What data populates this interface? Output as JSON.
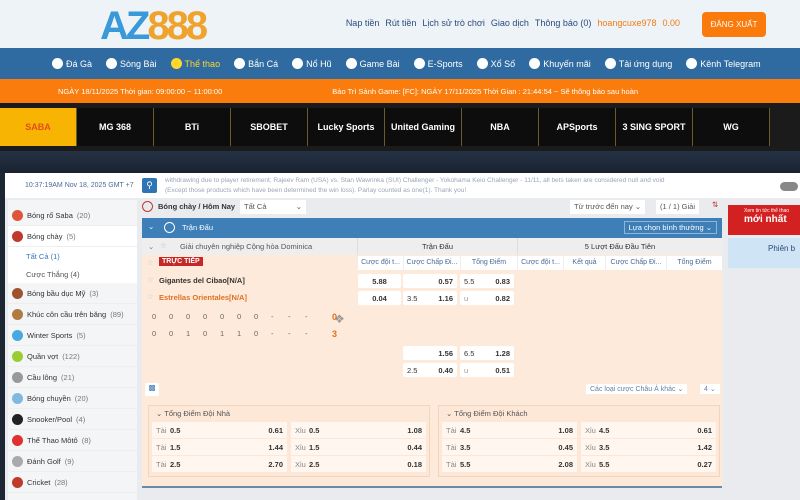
{
  "header": {
    "logo": "AZ888",
    "links": [
      "Nap tiền",
      "Rút tiền",
      "Lịch sử trò chơi",
      "Giao dịch",
      "Thông báo (0)"
    ],
    "username": "hoangcuxe978",
    "balance": "0.00",
    "logout": "ĐĂNG XUẤT"
  },
  "nav": [
    {
      "label": "Đá Gà",
      "icon": "rooster-icon"
    },
    {
      "label": "Sòng Bài",
      "icon": "casino-chip-icon"
    },
    {
      "label": "Thể thao",
      "icon": "soccer-ball-icon",
      "active": true
    },
    {
      "label": "Bắn Cá",
      "icon": "fish-icon"
    },
    {
      "label": "Nổ Hũ",
      "icon": "slot-777-icon"
    },
    {
      "label": "Game Bài",
      "icon": "cards-icon"
    },
    {
      "label": "E-Sports",
      "icon": "gamepad-icon"
    },
    {
      "label": "Xổ Số",
      "icon": "lottery-ball-icon"
    },
    {
      "label": "Khuyến mãi",
      "icon": "gift-icon"
    },
    {
      "label": "Tải ứng dụng",
      "icon": "phone-icon"
    },
    {
      "label": "Kênh Telegram",
      "icon": "telegram-icon"
    }
  ],
  "ticker": {
    "left": "NGÀY 18/11/2025 Thời gian:   09:00:00 ~ 11:00:00",
    "right": "Bảo Trì Sảnh Game: [FC]: NGÀY 17/11/2025 Thời Gian : 21:44:54 ~ Sẽ thông báo sau hoàn"
  },
  "providers": [
    "SABA",
    "MG 368",
    "BTi",
    "SBOBET",
    "Lucky Sports",
    "United Gaming",
    "NBA",
    "APSports",
    "3 SING SPORT",
    "WG"
  ],
  "search": {
    "clock": "10:37:19AM Nov 18, 2025 GMT +7",
    "marquee1": "withdrawing due to player retirement; Rajeev Ram (USA) vs. Stan Wawrinka (SUI) Challenger - Yokohama Keio Challenger - 11/11, all bets taken are considered null and void",
    "marquee2": "(Except those products which have been determined the win loss). Parlay counted as one(1). Thank you!"
  },
  "sidebar": {
    "items": [
      {
        "label": "Bóng rổ Saba",
        "count": "(20)",
        "color": "#e0553a"
      },
      {
        "label": "Bóng chày",
        "count": "(5)",
        "color": "#c0392b"
      },
      {
        "label": "Bóng bầu dục Mỹ",
        "count": "(3)",
        "color": "#a0522d"
      },
      {
        "label": "Khúc côn cầu trên băng",
        "count": "(89)",
        "color": "#b07a40"
      },
      {
        "label": "Winter Sports",
        "count": "(5)",
        "color": "#4aa8e0"
      },
      {
        "label": "Quần vợt",
        "count": "(122)",
        "color": "#9acd32"
      },
      {
        "label": "Cầu lông",
        "count": "(21)",
        "color": "#999"
      },
      {
        "label": "Bóng chuyền",
        "count": "(20)",
        "color": "#7fb9e0"
      },
      {
        "label": "Snooker/Pool",
        "count": "(4)",
        "color": "#222"
      },
      {
        "label": "Thể Thao Môtô",
        "count": "(8)",
        "color": "#e03030"
      },
      {
        "label": "Đánh Golf",
        "count": "(9)",
        "color": "#aaa"
      },
      {
        "label": "Cricket",
        "count": "(28)",
        "color": "#c0392b"
      }
    ],
    "subitems": [
      "Tất Cả (1)",
      "Cược Thắng (4)"
    ]
  },
  "main": {
    "title": "Bóng chày / Hôm Nay",
    "filter": "Tất Cả",
    "period": "Từ trước đến nay",
    "pages": "(1 / 1) Giải",
    "section": "Trận Đấu",
    "sort": "Lựa chọn bình thường",
    "league": "Giải chuyên nghiệp Cộng hòa Dominica",
    "group1": "Trận Đấu",
    "group2": "5 Lượt Đấu Đầu Tiên",
    "cols": [
      "Cược đội t...",
      "Cược Chấp Đi...",
      "Tổng Điểm",
      "Cược đội t...",
      "Kết quả",
      "Cược Chấp Đi...",
      "Tổng Điểm"
    ],
    "live": "TRỰC TIẾP",
    "home": "Gigantes del Cibao[N/A]",
    "away": "Estrellas Orientales[N/A]",
    "score_home": [
      "0",
      "0",
      "0",
      "0",
      "0",
      "0",
      "0",
      "-",
      "-",
      "-",
      "0"
    ],
    "score_away": [
      "0",
      "0",
      "1",
      "0",
      "1",
      "1",
      "0",
      "-",
      "-",
      "-",
      "3"
    ],
    "odds1": {
      "ml_h": "5.88",
      "ml_a": "0.04",
      "hc_h": "0.57",
      "hc_line": "3.5",
      "hc_a": "1.16",
      "ou_line": "5.5",
      "ou_o": "0.83",
      "ou_u_lbl": "u",
      "ou_u": "0.82"
    },
    "odds2": {
      "hc_h": "1.56",
      "hc_line": "2.5",
      "hc_a": "0.40",
      "ou_line": "6.5",
      "ou_o": "1.28",
      "ou_u_lbl": "u",
      "ou_u": "0.51"
    },
    "other_bets": "Các loại cược Châu Á khác",
    "count_select": "4"
  },
  "panels": [
    {
      "title": "Tổng Điểm Đội Nhà",
      "rows": [
        [
          "Tài",
          "0.5",
          "0.61",
          "Xỉu",
          "0.5",
          "1.08"
        ],
        [
          "Tài",
          "1.5",
          "1.44",
          "Xỉu",
          "1.5",
          "0.44"
        ],
        [
          "Tài",
          "2.5",
          "2.70",
          "Xỉu",
          "2.5",
          "0.18"
        ]
      ]
    },
    {
      "title": "Tổng Điểm Đội Khách",
      "rows": [
        [
          "Tài",
          "4.5",
          "1.08",
          "Xỉu",
          "4.5",
          "0.61"
        ],
        [
          "Tài",
          "3.5",
          "0.45",
          "Xỉu",
          "3.5",
          "1.42"
        ],
        [
          "Tài",
          "5.5",
          "2.08",
          "Xỉu",
          "5.5",
          "0.27"
        ]
      ]
    }
  ],
  "ad": {
    "line1": "Xem tin tức thể thao",
    "line2": "mới nhất",
    "line3": "Phiên b"
  }
}
